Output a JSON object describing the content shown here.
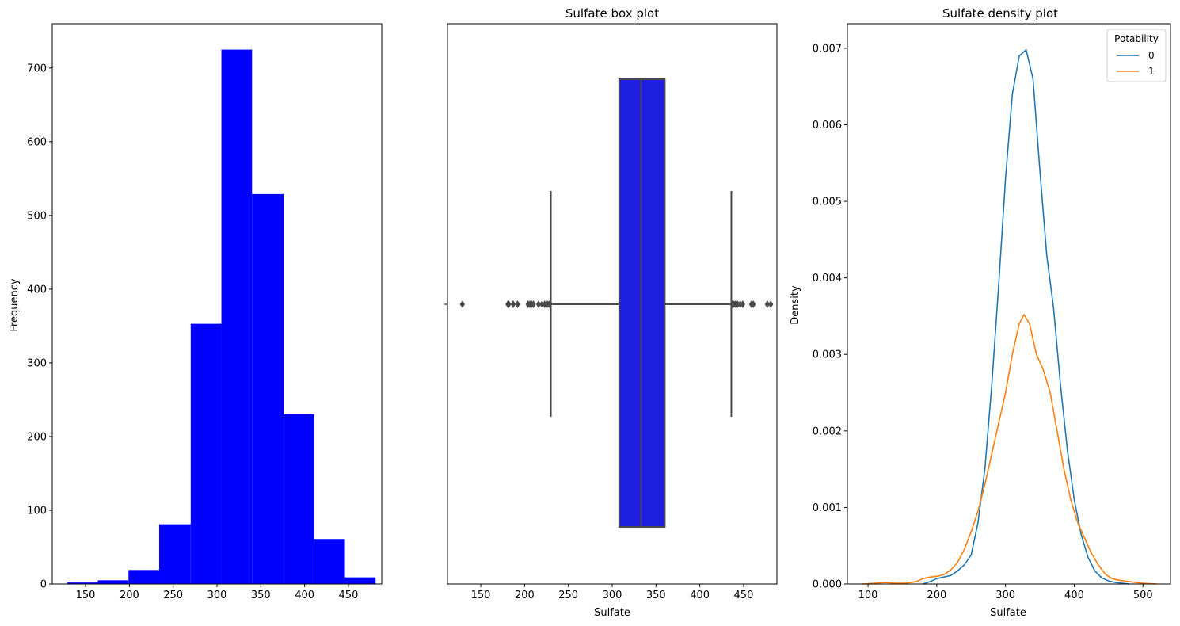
{
  "chart_data": [
    {
      "type": "bar",
      "title": "",
      "xlabel": "",
      "ylabel": "Frequency",
      "xlim": [
        112,
        488
      ],
      "ylim": [
        0,
        760
      ],
      "xticks": [
        150,
        200,
        250,
        300,
        350,
        400,
        450
      ],
      "yticks": [
        0,
        100,
        200,
        300,
        400,
        500,
        600,
        700
      ],
      "color": "#0000ff",
      "bins": [
        {
          "x0": 129,
          "x1": 164,
          "count": 2
        },
        {
          "x0": 164,
          "x1": 199,
          "count": 5
        },
        {
          "x0": 199,
          "x1": 234,
          "count": 19
        },
        {
          "x0": 234,
          "x1": 270,
          "count": 81
        },
        {
          "x0": 270,
          "x1": 305,
          "count": 353
        },
        {
          "x0": 305,
          "x1": 340,
          "count": 725
        },
        {
          "x0": 340,
          "x1": 376,
          "count": 529
        },
        {
          "x0": 376,
          "x1": 411,
          "count": 230
        },
        {
          "x0": 411,
          "x1": 446,
          "count": 61
        },
        {
          "x0": 446,
          "x1": 481,
          "count": 9
        }
      ]
    },
    {
      "type": "box",
      "title": "Sulfate box plot",
      "xlabel": "Sulfate",
      "ylabel": "",
      "xlim": [
        112,
        488
      ],
      "xticks": [
        150,
        200,
        250,
        300,
        350,
        400,
        450
      ],
      "box_color": "#1f1fe0",
      "line_color": "#4a4a4a",
      "stats": {
        "whisker_low": 230,
        "q1": 308,
        "median": 333,
        "q3": 360,
        "whisker_high": 436
      },
      "outliers": [
        129,
        181,
        182,
        187,
        192,
        204,
        206,
        208,
        210,
        216,
        220,
        223,
        226,
        228,
        437,
        439,
        441,
        443,
        446,
        449,
        459,
        461,
        477,
        481
      ]
    },
    {
      "type": "line",
      "title": "Sulfate density plot",
      "xlabel": "Sulfate",
      "ylabel": "Density",
      "xlim": [
        70,
        540
      ],
      "ylim": [
        0,
        0.00732
      ],
      "xticks": [
        100,
        200,
        300,
        400,
        500
      ],
      "yticks": [
        0.0,
        0.001,
        0.002,
        0.003,
        0.004,
        0.005,
        0.006,
        0.007
      ],
      "legend": {
        "title": "Potability",
        "position": "top-right"
      },
      "series": [
        {
          "name": "0",
          "color": "#1f77b4",
          "x": [
            180,
            190,
            200,
            210,
            220,
            230,
            240,
            250,
            260,
            270,
            280,
            290,
            300,
            310,
            320,
            330,
            340,
            350,
            360,
            370,
            380,
            390,
            400,
            410,
            420,
            430,
            440,
            450,
            460,
            470,
            480
          ],
          "y": [
            0.0,
            3e-05,
            7e-05,
            9e-05,
            0.00011,
            0.00017,
            0.00025,
            0.00038,
            0.0008,
            0.0015,
            0.0026,
            0.0039,
            0.0053,
            0.0064,
            0.0069,
            0.00698,
            0.0066,
            0.0054,
            0.0043,
            0.0036,
            0.0026,
            0.00175,
            0.0011,
            0.00065,
            0.00035,
            0.00017,
            8e-05,
            4e-05,
            2e-05,
            1e-05,
            0.0
          ]
        },
        {
          "name": "1",
          "color": "#ff7f0e",
          "x": [
            92,
            110,
            125,
            140,
            155,
            170,
            180,
            190,
            200,
            210,
            220,
            230,
            240,
            250,
            260,
            270,
            280,
            290,
            300,
            310,
            320,
            327,
            335,
            345,
            355,
            365,
            375,
            385,
            395,
            405,
            415,
            425,
            435,
            445,
            455,
            465,
            480,
            500,
            520
          ],
          "y": [
            0.0,
            1e-05,
            2e-05,
            1e-05,
            1e-05,
            3e-05,
            7e-05,
            9e-05,
            0.0001,
            0.00012,
            0.00018,
            0.00028,
            0.00045,
            0.00068,
            0.00095,
            0.0013,
            0.0017,
            0.0021,
            0.0025,
            0.003,
            0.0034,
            0.00352,
            0.0034,
            0.003,
            0.0028,
            0.0025,
            0.002,
            0.0015,
            0.0011,
            0.0008,
            0.0006,
            0.0004,
            0.00025,
            0.00013,
            7e-05,
            5e-05,
            3e-05,
            1e-05,
            0.0
          ]
        }
      ]
    }
  ]
}
